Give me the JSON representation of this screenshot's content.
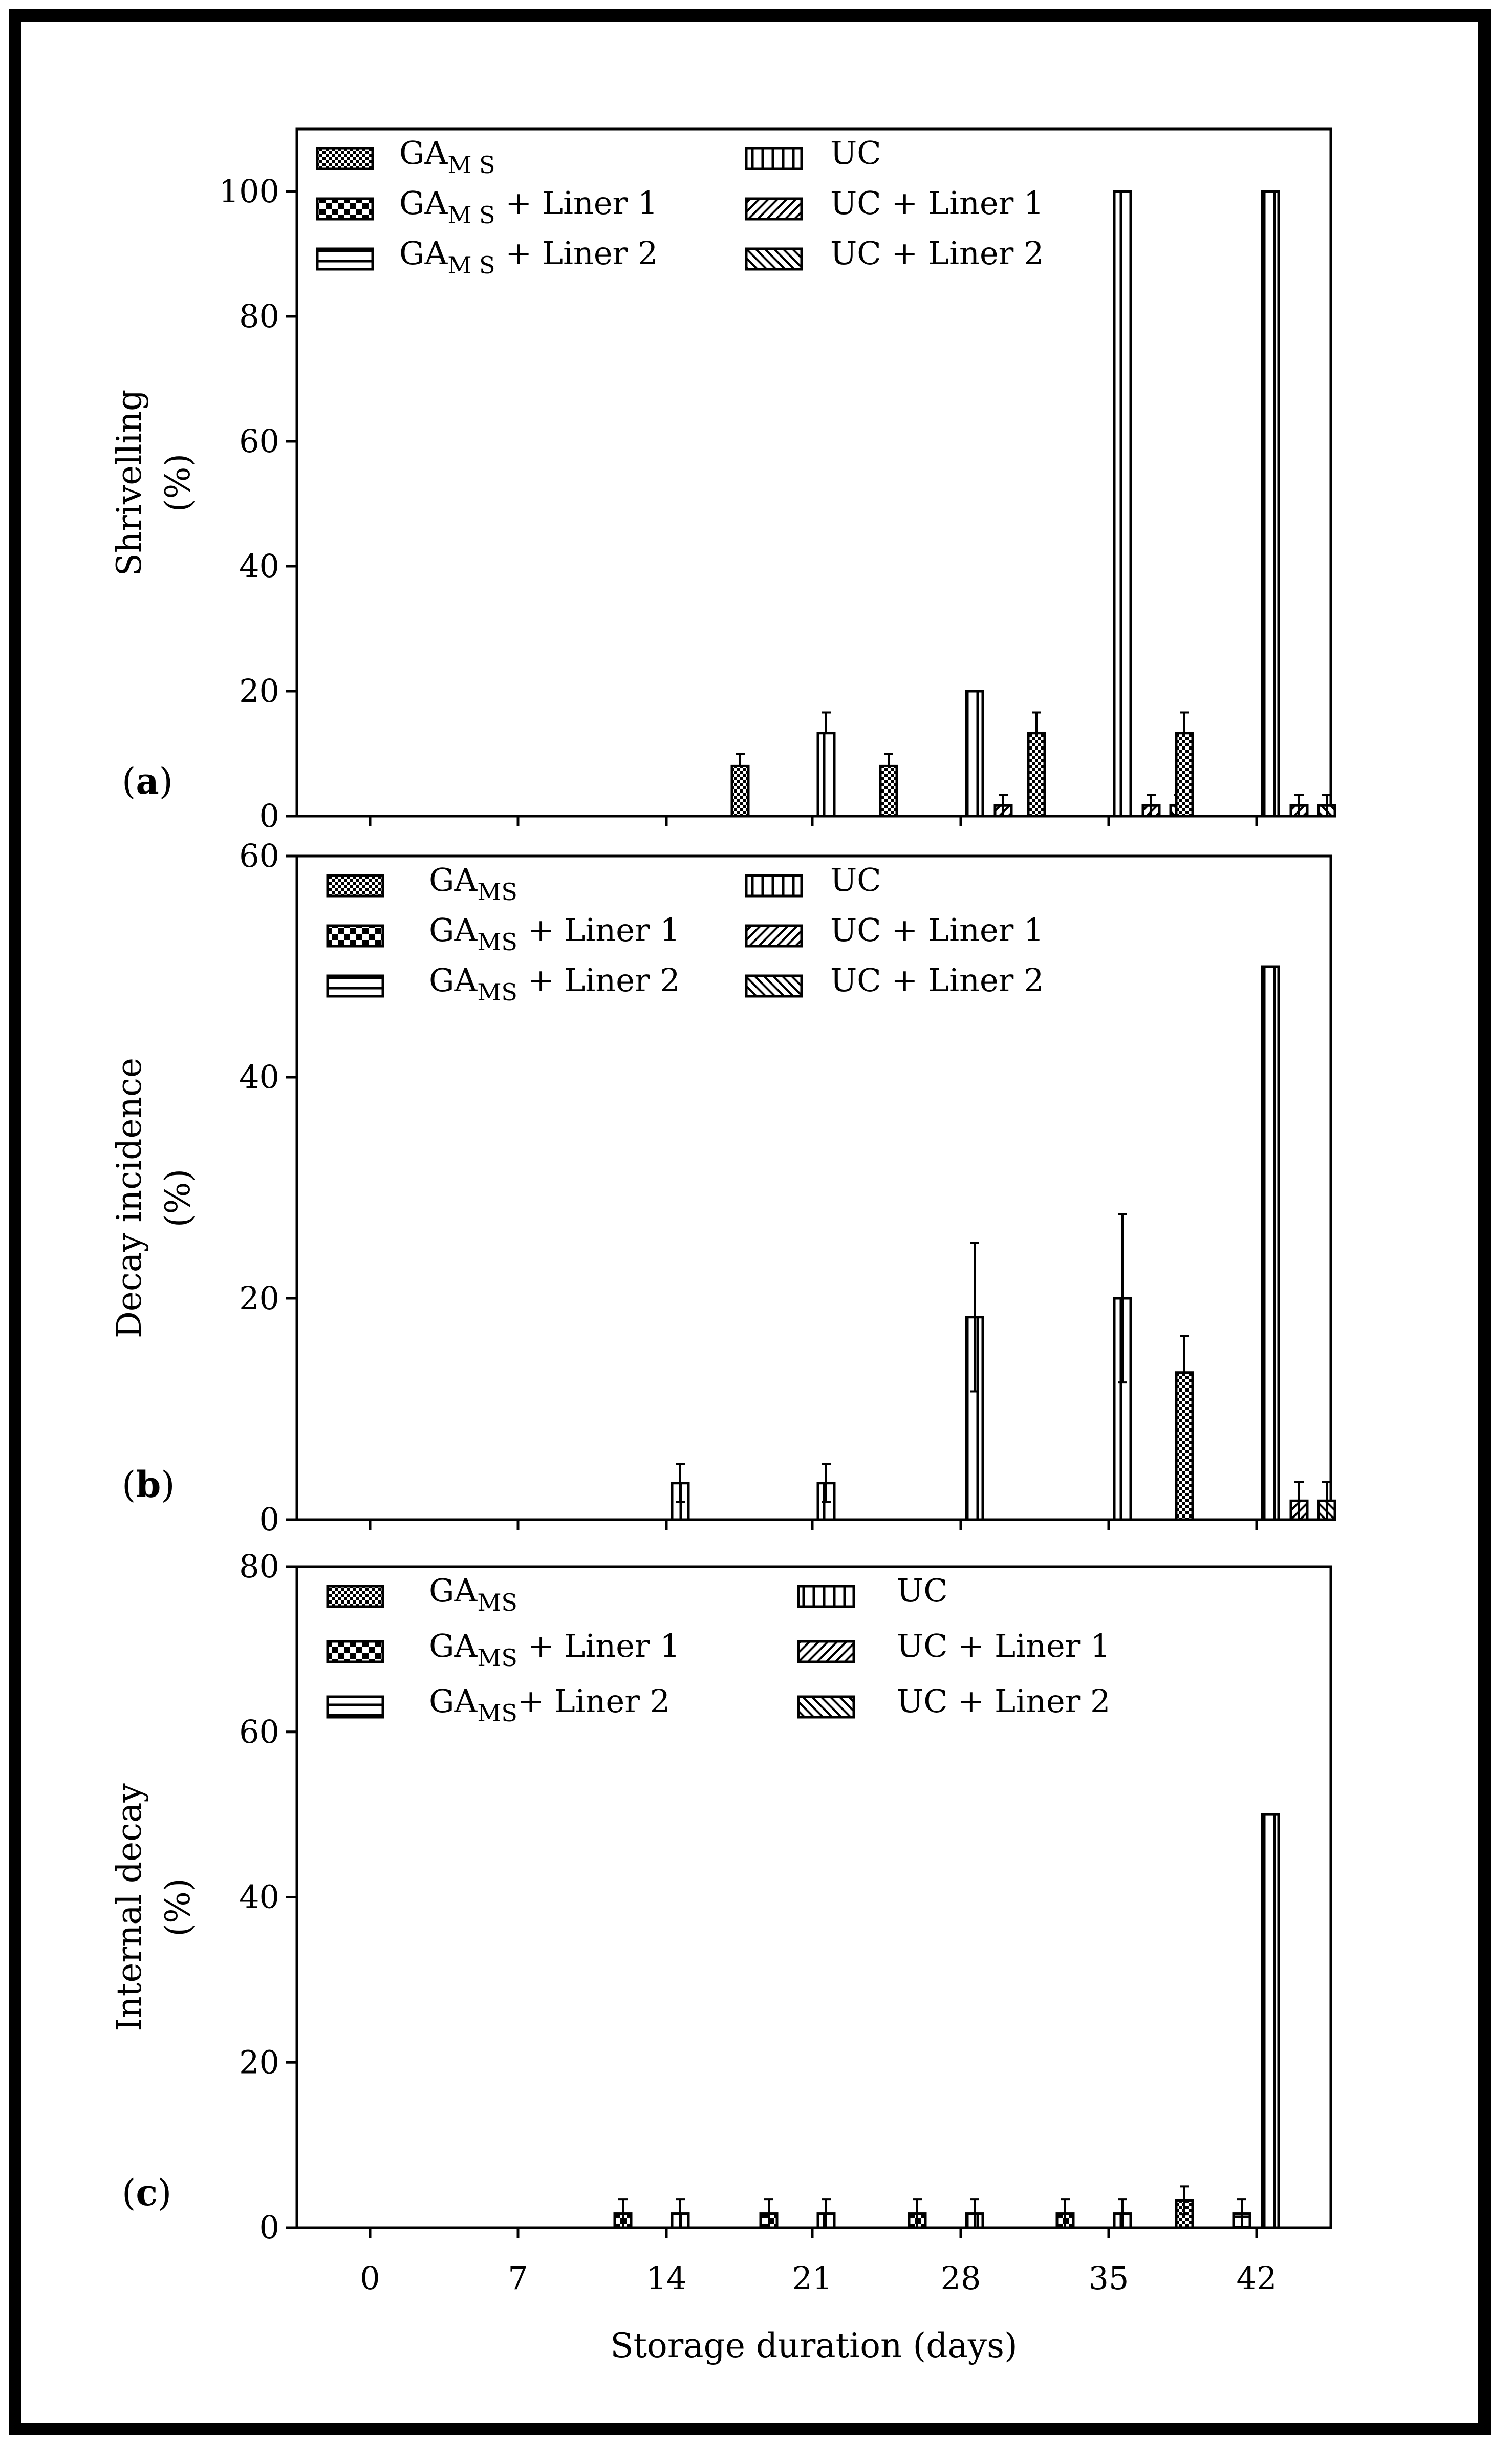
{
  "colors": {
    "ink": "#000000",
    "paper": "#ffffff"
  },
  "series_names": [
    "GA_MS",
    "GA_MS + Liner 1",
    "GA_MS + Liner 2",
    "UC",
    "UC + Liner 1",
    "UC + Liner 2"
  ],
  "series_patterns": [
    "fine-check",
    "coarse-check",
    "horizontal-lines",
    "vertical-lines",
    "diagonal-up",
    "diagonal-down"
  ],
  "chart_data": [
    {
      "panel": "a",
      "panel_label": "a",
      "type": "bar",
      "ylabel": "Shrivelling",
      "ylabel_unit": "(%)",
      "ylim": [
        0,
        110
      ],
      "yticks": [
        0,
        20,
        40,
        60,
        80,
        100
      ],
      "xlabel": "",
      "categories": [
        "0",
        "7",
        "14",
        "21",
        "28",
        "35",
        "42"
      ],
      "legend": {
        "left": [
          {
            "base": "GA",
            "sub": "M S",
            "suffix": "",
            "pattern": "fine-check"
          },
          {
            "base": "GA",
            "sub": "M S",
            "suffix": " + Liner 1",
            "pattern": "coarse-check"
          },
          {
            "base": "GA",
            "sub": "M S",
            "suffix": " + Liner 2",
            "pattern": "horizontal-lines"
          }
        ],
        "right": [
          {
            "text": "UC",
            "pattern": "vertical-lines"
          },
          {
            "text": "UC + Liner 1",
            "pattern": "diagonal-up"
          },
          {
            "text": "UC + Liner 2",
            "pattern": "diagonal-down"
          }
        ]
      },
      "bars": [
        {
          "day": "21",
          "series": "GA_MS",
          "value": 8,
          "error": 2
        },
        {
          "day": "21",
          "series": "UC",
          "value": 13.3,
          "error": 3.3
        },
        {
          "day": "28",
          "series": "GA_MS",
          "value": 8,
          "error": 2
        },
        {
          "day": "28",
          "series": "UC",
          "value": 20,
          "error": 0
        },
        {
          "day": "28",
          "series": "UC + Liner 1",
          "value": 1.7,
          "error": 1.7
        },
        {
          "day": "35",
          "series": "GA_MS",
          "value": 13.3,
          "error": 3.3
        },
        {
          "day": "35",
          "series": "UC",
          "value": 100,
          "error": 0
        },
        {
          "day": "35",
          "series": "UC + Liner 1",
          "value": 1.7,
          "error": 1.7
        },
        {
          "day": "35",
          "series": "UC + Liner 2",
          "value": 1.7,
          "error": 1.7
        },
        {
          "day": "42",
          "series": "GA_MS",
          "value": 13.3,
          "error": 3.3
        },
        {
          "day": "42",
          "series": "UC",
          "value": 100,
          "error": 0
        },
        {
          "day": "42",
          "series": "UC + Liner 1",
          "value": 1.7,
          "error": 1.7
        },
        {
          "day": "42",
          "series": "UC + Liner 2",
          "value": 1.7,
          "error": 1.7
        }
      ]
    },
    {
      "panel": "b",
      "panel_label": "b",
      "type": "bar",
      "ylabel": "Decay incidence",
      "ylabel_unit": "(%)",
      "ylim": [
        0,
        60
      ],
      "yticks": [
        0,
        20,
        40,
        60
      ],
      "xlabel": "",
      "categories": [
        "0",
        "7",
        "14",
        "21",
        "28",
        "35",
        "42"
      ],
      "legend": {
        "left": [
          {
            "base": "GA",
            "sub": "MS",
            "suffix": "",
            "pattern": "fine-check"
          },
          {
            "base": "GA",
            "sub": "MS",
            "suffix": " + Liner 1",
            "pattern": "coarse-check"
          },
          {
            "base": "GA",
            "sub": "MS",
            "suffix": " + Liner 2",
            "pattern": "horizontal-lines"
          }
        ],
        "right": [
          {
            "text": "UC",
            "pattern": "vertical-lines"
          },
          {
            "text": "UC + Liner 1",
            "pattern": "diagonal-up"
          },
          {
            "text": "UC + Liner 2",
            "pattern": "diagonal-down"
          }
        ]
      },
      "bars": [
        {
          "day": "14",
          "series": "UC",
          "value": 3.3,
          "error": 1.7
        },
        {
          "day": "21",
          "series": "UC",
          "value": 3.3,
          "error": 1.7
        },
        {
          "day": "28",
          "series": "UC",
          "value": 18.3,
          "error": 6.7
        },
        {
          "day": "35",
          "series": "UC",
          "value": 20,
          "error": 7.6
        },
        {
          "day": "42",
          "series": "GA_MS",
          "value": 13.3,
          "error": 3.3
        },
        {
          "day": "42",
          "series": "UC",
          "value": 50,
          "error": 0
        },
        {
          "day": "42",
          "series": "UC + Liner 1",
          "value": 1.7,
          "error": 1.7
        },
        {
          "day": "42",
          "series": "UC + Liner 2",
          "value": 1.7,
          "error": 1.7
        }
      ]
    },
    {
      "panel": "c",
      "panel_label": "c",
      "type": "bar",
      "ylabel": "Internal decay",
      "ylabel_unit": "(%)",
      "ylim": [
        0,
        80
      ],
      "yticks": [
        0,
        20,
        40,
        60,
        80
      ],
      "xlabel": "Storage duration  (days)",
      "categories": [
        "0",
        "7",
        "14",
        "21",
        "28",
        "35",
        "42"
      ],
      "legend": {
        "left": [
          {
            "base": "GA",
            "sub": "MS",
            "suffix": "",
            "pattern": "fine-check"
          },
          {
            "base": "GA",
            "sub": "MS",
            "suffix": " + Liner 1",
            "pattern": "coarse-check"
          },
          {
            "base": "GA",
            "sub": "MS",
            "suffix": "+ Liner 2",
            "pattern": "horizontal-lines"
          }
        ],
        "right": [
          {
            "text": "UC",
            "pattern": "vertical-lines"
          },
          {
            "text": "UC + Liner 1",
            "pattern": "diagonal-up"
          },
          {
            "text": "UC + Liner 2",
            "pattern": "diagonal-down"
          }
        ]
      },
      "bars": [
        {
          "day": "14",
          "series": "GA_MS + Liner 1",
          "value": 1.7,
          "error": 1.7
        },
        {
          "day": "14",
          "series": "UC",
          "value": 1.7,
          "error": 1.7
        },
        {
          "day": "21",
          "series": "GA_MS + Liner 1",
          "value": 1.7,
          "error": 1.7
        },
        {
          "day": "21",
          "series": "UC",
          "value": 1.7,
          "error": 1.7
        },
        {
          "day": "28",
          "series": "GA_MS + Liner 1",
          "value": 1.7,
          "error": 1.7
        },
        {
          "day": "28",
          "series": "UC",
          "value": 1.7,
          "error": 1.7
        },
        {
          "day": "35",
          "series": "GA_MS + Liner 1",
          "value": 1.7,
          "error": 1.7
        },
        {
          "day": "35",
          "series": "UC",
          "value": 1.7,
          "error": 1.7
        },
        {
          "day": "42",
          "series": "GA_MS",
          "value": 3.3,
          "error": 1.7
        },
        {
          "day": "42",
          "series": "GA_MS + Liner 2",
          "value": 1.7,
          "error": 1.7
        },
        {
          "day": "42",
          "series": "UC",
          "value": 50,
          "error": 0
        }
      ]
    }
  ]
}
